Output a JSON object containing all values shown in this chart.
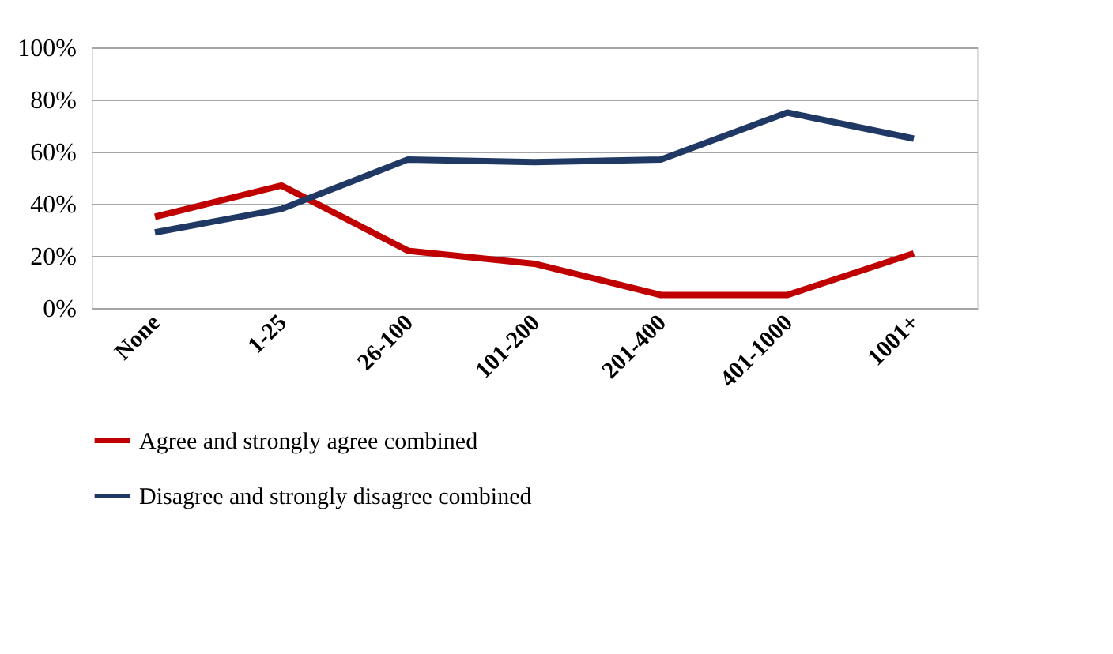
{
  "chart_data": {
    "type": "line",
    "categories": [
      "None",
      "1-25",
      "26-100",
      "101-200",
      "201-400",
      "401-1000",
      "1001+"
    ],
    "series": [
      {
        "name": "Agree and strongly agree combined",
        "color": "#c00000",
        "values": [
          35,
          47,
          22,
          17,
          5,
          5,
          21
        ]
      },
      {
        "name": "Disagree and strongly disagree combined",
        "color": "#1f3864",
        "values": [
          29,
          38,
          57,
          56,
          57,
          75,
          65
        ]
      }
    ],
    "ylim": [
      0,
      100
    ],
    "yticks": [
      {
        "value": 0,
        "label": "0%"
      },
      {
        "value": 20,
        "label": "20%"
      },
      {
        "value": 40,
        "label": "40%"
      },
      {
        "value": 60,
        "label": "60%"
      },
      {
        "value": 80,
        "label": "80%"
      },
      {
        "value": 100,
        "label": "100%"
      }
    ],
    "grid": "y",
    "legend": "bottom",
    "marker": "none",
    "line_style": "solid"
  }
}
